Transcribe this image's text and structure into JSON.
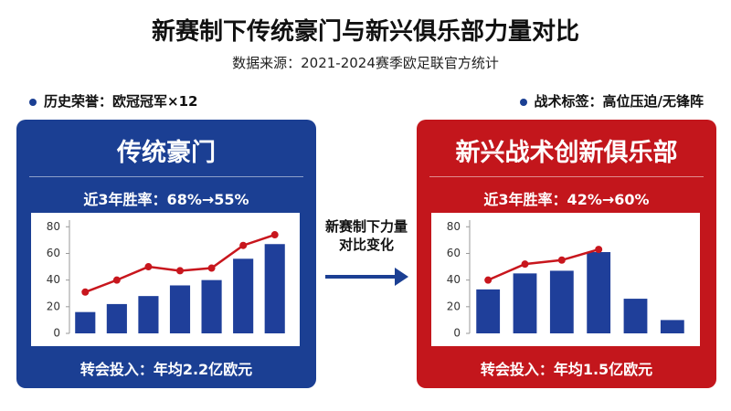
{
  "header": {
    "title": "新赛制下传统豪门与新兴俱乐部力量对比",
    "subtitle": "数据来源：2021-2024赛季欧足联官方统计"
  },
  "left_note": "历史荣誉：欧冠冠军×12",
  "right_note": "战术标签：高位压迫/无锋阵",
  "arrow_label": "新赛制下力量对比变化",
  "chart_data": [
    {
      "type": "combo",
      "title": "传统豪门",
      "subtitle": "近3年胜率：68%→55%",
      "footer": "转会投入：年均2.2亿欧元",
      "panel_color": "#1b3f93",
      "categories": [
        null,
        null,
        null,
        null,
        null,
        null,
        null
      ],
      "series": [
        {
          "type": "bar",
          "color": "#1f3f9a",
          "values": [
            16,
            22,
            28,
            36,
            40,
            56,
            67
          ]
        },
        {
          "type": "line",
          "color": "#c8161d",
          "values": [
            31,
            40,
            50,
            47,
            49,
            66,
            74
          ]
        }
      ],
      "ylim": [
        0,
        85
      ],
      "yticks": [
        0,
        20,
        40,
        60,
        80
      ],
      "grid": false
    },
    {
      "type": "combo",
      "title": "新兴战术创新俱乐部",
      "subtitle": "近3年胜率：42%→60%",
      "footer": "转会投入：年均1.5亿欧元",
      "panel_color": "#c3161c",
      "categories": [
        null,
        null,
        null,
        null,
        null,
        null
      ],
      "series": [
        {
          "type": "bar",
          "color": "#1f3f9a",
          "values": [
            33,
            45,
            47,
            61,
            26,
            10
          ]
        },
        {
          "type": "line",
          "color": "#c8161d",
          "values": [
            40,
            52,
            55,
            63,
            null,
            null
          ]
        }
      ],
      "ylim": [
        0,
        85
      ],
      "yticks": [
        0,
        20,
        40,
        60,
        80
      ],
      "grid": false
    }
  ]
}
